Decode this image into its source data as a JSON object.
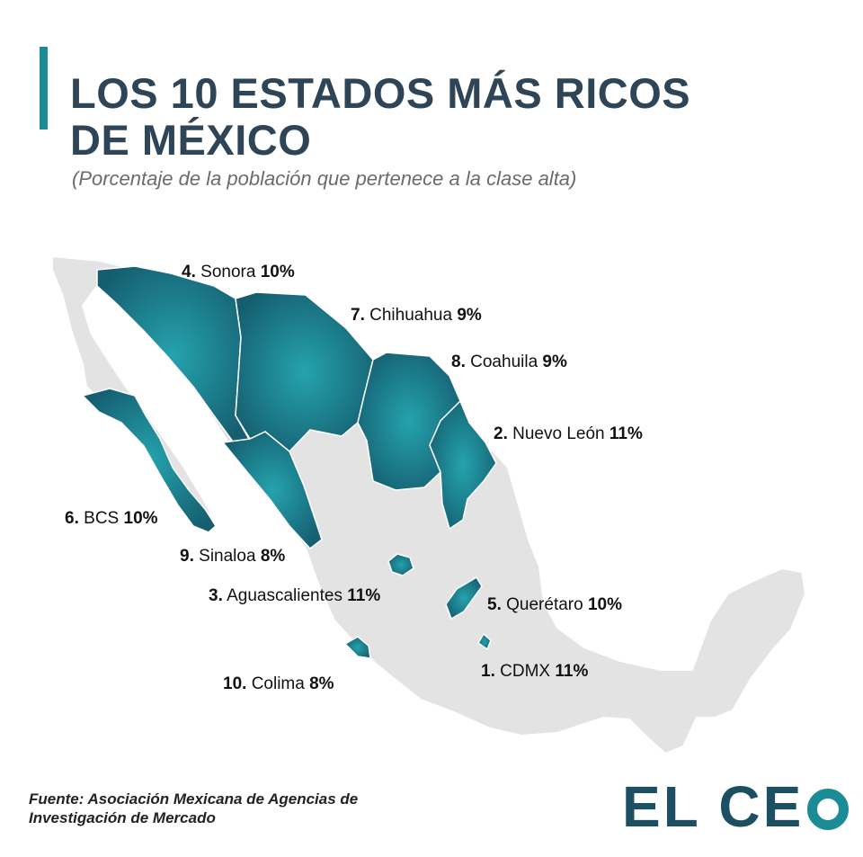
{
  "title": {
    "line1": "LOS 10 ESTADOS MÁS RICOS",
    "line2": "DE MÉXICO"
  },
  "subtitle": "(Porcentaje de la población que pertenece a la clase alta)",
  "colors": {
    "accent": "#1b8c96",
    "title": "#2e4457",
    "highlight_state": "#1b7f8e",
    "other_state": "#e3e3e3",
    "logo": "#1d4f63"
  },
  "states": [
    {
      "rank": "1.",
      "name": "CDMX",
      "value": "11%"
    },
    {
      "rank": "2.",
      "name": "Nuevo León",
      "value": "11%"
    },
    {
      "rank": "3.",
      "name": "Aguascalientes",
      "value": "11%"
    },
    {
      "rank": "4.",
      "name": "Sonora",
      "value": "10%"
    },
    {
      "rank": "5.",
      "name": "Querétaro",
      "value": "10%"
    },
    {
      "rank": "6.",
      "name": "BCS",
      "value": "10%"
    },
    {
      "rank": "7.",
      "name": "Chihuahua",
      "value": "9%"
    },
    {
      "rank": "8.",
      "name": "Coahuila",
      "value": "9%"
    },
    {
      "rank": "9.",
      "name": "Sinaloa",
      "value": "8%"
    },
    {
      "rank": "10.",
      "name": "Colima",
      "value": "8%"
    }
  ],
  "source": {
    "line1": "Fuente: Asociación Mexicana de Agencias de",
    "line2": "Investigación de Mercado"
  },
  "logo": {
    "text": "EL CE"
  }
}
